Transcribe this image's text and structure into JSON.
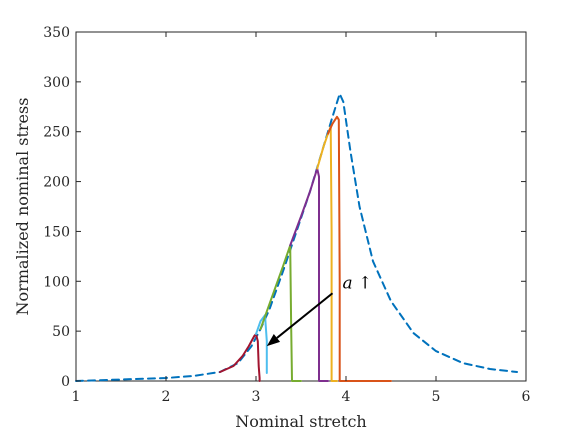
{
  "chart_data": {
    "type": "line",
    "title": "",
    "xlabel": "Nominal stretch",
    "ylabel": "Normalized nominal stress",
    "xlim": [
      1,
      6
    ],
    "ylim": [
      0,
      350
    ],
    "xticks": [
      1,
      2,
      3,
      4,
      5,
      6
    ],
    "yticks": [
      0,
      50,
      100,
      150,
      200,
      250,
      300,
      350
    ],
    "grid": false,
    "legend": "none",
    "annotation": {
      "text": "a ↑",
      "arrow_from": [
        3.85,
        88
      ],
      "arrow_to": [
        3.12,
        35
      ]
    },
    "series": [
      {
        "color": "#0072BD",
        "dash": true,
        "x": [
          1.0,
          1.5,
          2.0,
          2.3,
          2.6,
          2.8,
          2.95,
          3.05,
          3.15,
          3.3,
          3.45,
          3.6,
          3.75,
          3.85,
          3.93,
          3.97,
          4.05,
          4.15,
          4.3,
          4.5,
          4.75,
          5.0,
          5.3,
          5.6,
          5.9
        ],
        "y": [
          0,
          1.5,
          3,
          5,
          9,
          18,
          35,
          52,
          72,
          110,
          150,
          190,
          235,
          265,
          288,
          280,
          230,
          175,
          120,
          80,
          48,
          30,
          18,
          12,
          9
        ]
      },
      {
        "color": "#A2142F",
        "dash": false,
        "x": [
          2.6,
          2.75,
          2.85,
          2.92,
          2.98,
          3.0,
          3.02,
          3.03,
          3.04,
          3.04
        ],
        "y": [
          9,
          15,
          25,
          35,
          45,
          47,
          40,
          15,
          3,
          0
        ]
      },
      {
        "color": "#4DBEEE",
        "dash": false,
        "x": [
          3.0,
          3.05,
          3.1,
          3.12,
          3.12
        ],
        "y": [
          47,
          60,
          66,
          40,
          8
        ]
      },
      {
        "color": "#77AC30",
        "dash": false,
        "x": [
          3.05,
          3.2,
          3.3,
          3.38,
          3.39,
          3.4,
          3.5
        ],
        "y": [
          52,
          90,
          115,
          136,
          60,
          0,
          0
        ]
      },
      {
        "color": "#7E2F8E",
        "dash": false,
        "x": [
          3.38,
          3.5,
          3.6,
          3.68,
          3.7,
          3.7,
          3.8
        ],
        "y": [
          136,
          165,
          190,
          213,
          205,
          0,
          0
        ]
      },
      {
        "color": "#EDB120",
        "dash": false,
        "x": [
          3.68,
          3.75,
          3.8,
          3.83,
          3.84,
          3.84,
          3.9
        ],
        "y": [
          213,
          235,
          248,
          255,
          150,
          0,
          0
        ]
      },
      {
        "color": "#D95319",
        "dash": false,
        "x": [
          3.8,
          3.85,
          3.9,
          3.92,
          3.93,
          3.93,
          4.5
        ],
        "y": [
          248,
          258,
          265,
          262,
          100,
          0,
          0
        ]
      }
    ]
  }
}
